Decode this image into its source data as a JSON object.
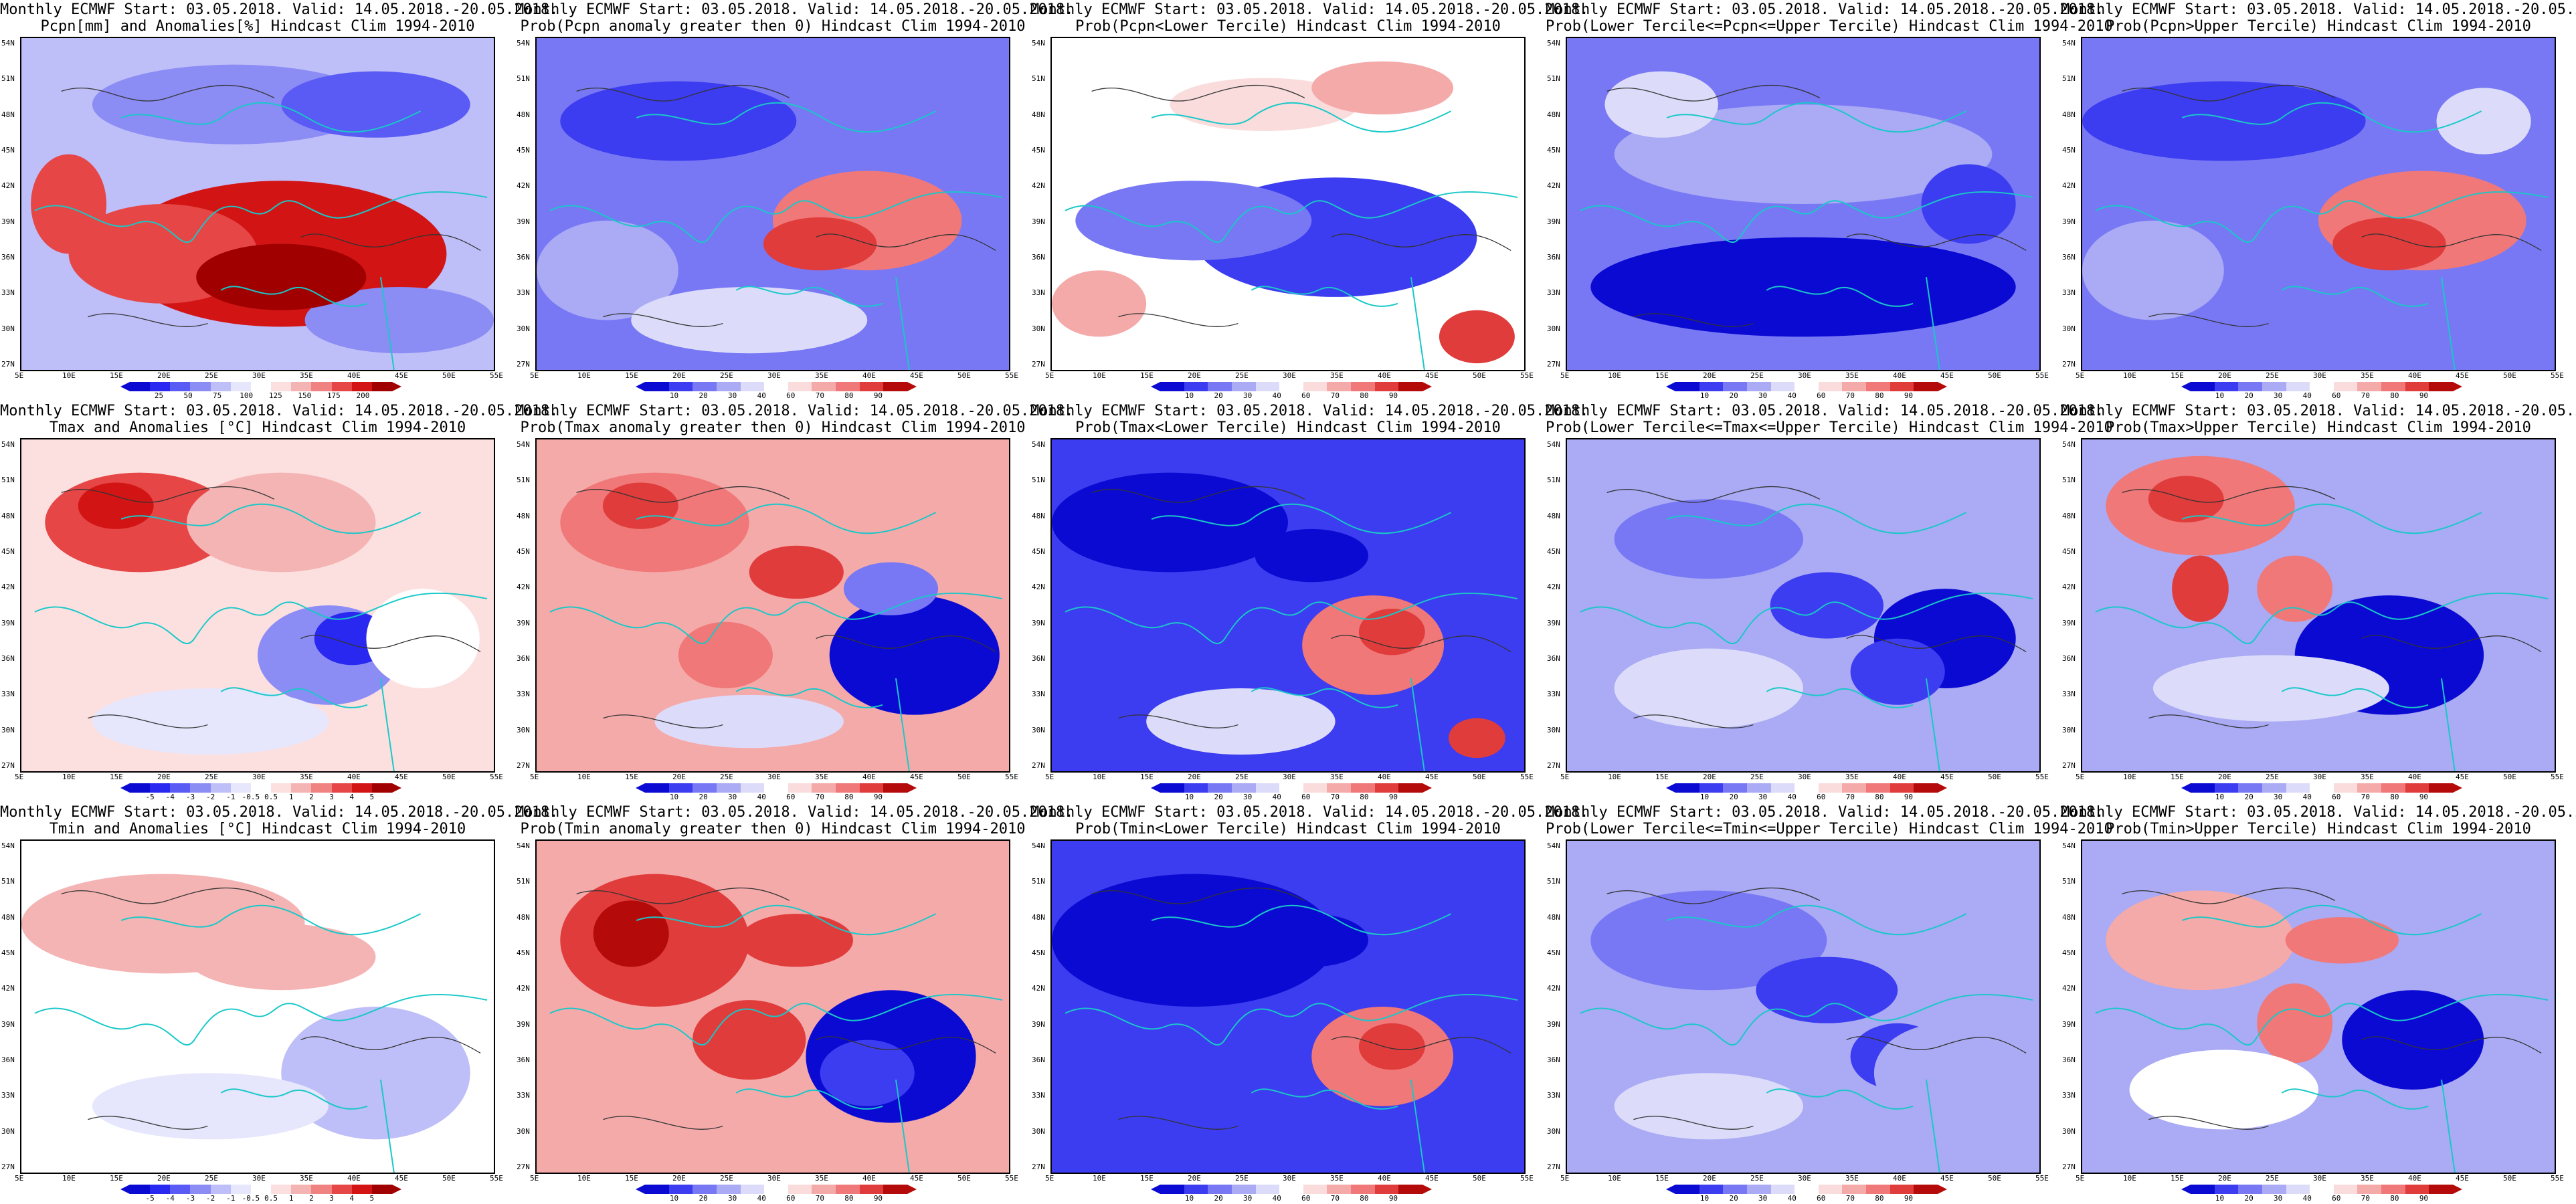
{
  "header_line": "Monthly ECMWF Start: 03.05.2018. Valid: 14.05.2018.-20.05.2018.",
  "lat_labels": [
    "54N",
    "51N",
    "48N",
    "45N",
    "42N",
    "39N",
    "36N",
    "33N",
    "30N",
    "27N"
  ],
  "lon_labels": [
    "5E",
    "10E",
    "15E",
    "20E",
    "25E",
    "30E",
    "35E",
    "40E",
    "45E",
    "50E",
    "55E"
  ],
  "palettes": {
    "blue_red": [
      "#0a0ad2",
      "#2828f0",
      "#5a5af5",
      "#8c8cf5",
      "#bebef8",
      "#e6e6fc",
      "#ffffff",
      "#fce0e0",
      "#f5b4b4",
      "#f08282",
      "#e64646",
      "#d21414",
      "#a00000"
    ],
    "prob_blue_red": [
      "#0a0ad2",
      "#3c3cf0",
      "#7878f5",
      "#aaaaf5",
      "#dcdcfa",
      "#ffffff",
      "#fadcdc",
      "#f5aaaa",
      "#f07878",
      "#e03c3c",
      "#b40a0a"
    ]
  },
  "colorbar_labels": {
    "pcpn_anom": [
      "25",
      "50",
      "75",
      "100",
      "125",
      "150",
      "175",
      "200"
    ],
    "t_anom": [
      "-5",
      "-4",
      "-3",
      "-2",
      "-1",
      "-0.5",
      "0.5",
      "1",
      "2",
      "3",
      "4",
      "5"
    ],
    "prob": [
      "10",
      "20",
      "30",
      "40",
      "60",
      "70",
      "80",
      "90"
    ]
  },
  "panels": [
    {
      "title": "Pcpn[mm] and Anomalies[%] Hindcast Clim 1994-2010",
      "bar": "pcpn_anom",
      "field": "pcpn_anom"
    },
    {
      "title": "Prob(Pcpn anomaly greater then 0) Hindcast Clim 1994-2010",
      "bar": "prob",
      "field": "pcpn_pos"
    },
    {
      "title": "Prob(Pcpn<Lower Tercile) Hindcast Clim 1994-2010",
      "bar": "prob",
      "field": "pcpn_low"
    },
    {
      "title": "Prob(Lower Tercile<=Pcpn<=Upper Tercile) Hindcast Clim 1994-2010",
      "bar": "prob",
      "field": "pcpn_mid"
    },
    {
      "title": "Prob(Pcpn>Upper Tercile) Hindcast Clim 1994-2010",
      "bar": "prob",
      "field": "pcpn_up"
    },
    {
      "title": "Tmax and Anomalies [°C] Hindcast Clim 1994-2010",
      "bar": "t_anom",
      "field": "tmax_anom"
    },
    {
      "title": "Prob(Tmax anomaly greater then 0) Hindcast Clim 1994-2010",
      "bar": "prob",
      "field": "tmax_pos"
    },
    {
      "title": "Prob(Tmax<Lower Tercile) Hindcast Clim 1994-2010",
      "bar": "prob",
      "field": "tmax_low"
    },
    {
      "title": "Prob(Lower Tercile<=Tmax<=Upper Tercile) Hindcast Clim 1994-2010",
      "bar": "prob",
      "field": "tmax_mid"
    },
    {
      "title": "Prob(Tmax>Upper Tercile) Hindcast Clim 1994-2010",
      "bar": "prob",
      "field": "tmax_up"
    },
    {
      "title": "Tmin and Anomalies [°C] Hindcast Clim 1994-2010",
      "bar": "t_anom",
      "field": "tmin_anom"
    },
    {
      "title": "Prob(Tmin anomaly greater then 0) Hindcast Clim 1994-2010",
      "bar": "prob",
      "field": "tmin_pos"
    },
    {
      "title": "Prob(Tmin<Lower Tercile) Hindcast Clim 1994-2010",
      "bar": "prob",
      "field": "tmin_low"
    },
    {
      "title": "Prob(Lower Tercile<=Tmin<=Upper Tercile) Hindcast Clim 1994-2010",
      "bar": "prob",
      "field": "tmin_mid"
    },
    {
      "title": "Prob(Tmin>Upper Tercile) Hindcast Clim 1994-2010",
      "bar": "prob",
      "field": "tmin_up"
    }
  ]
}
